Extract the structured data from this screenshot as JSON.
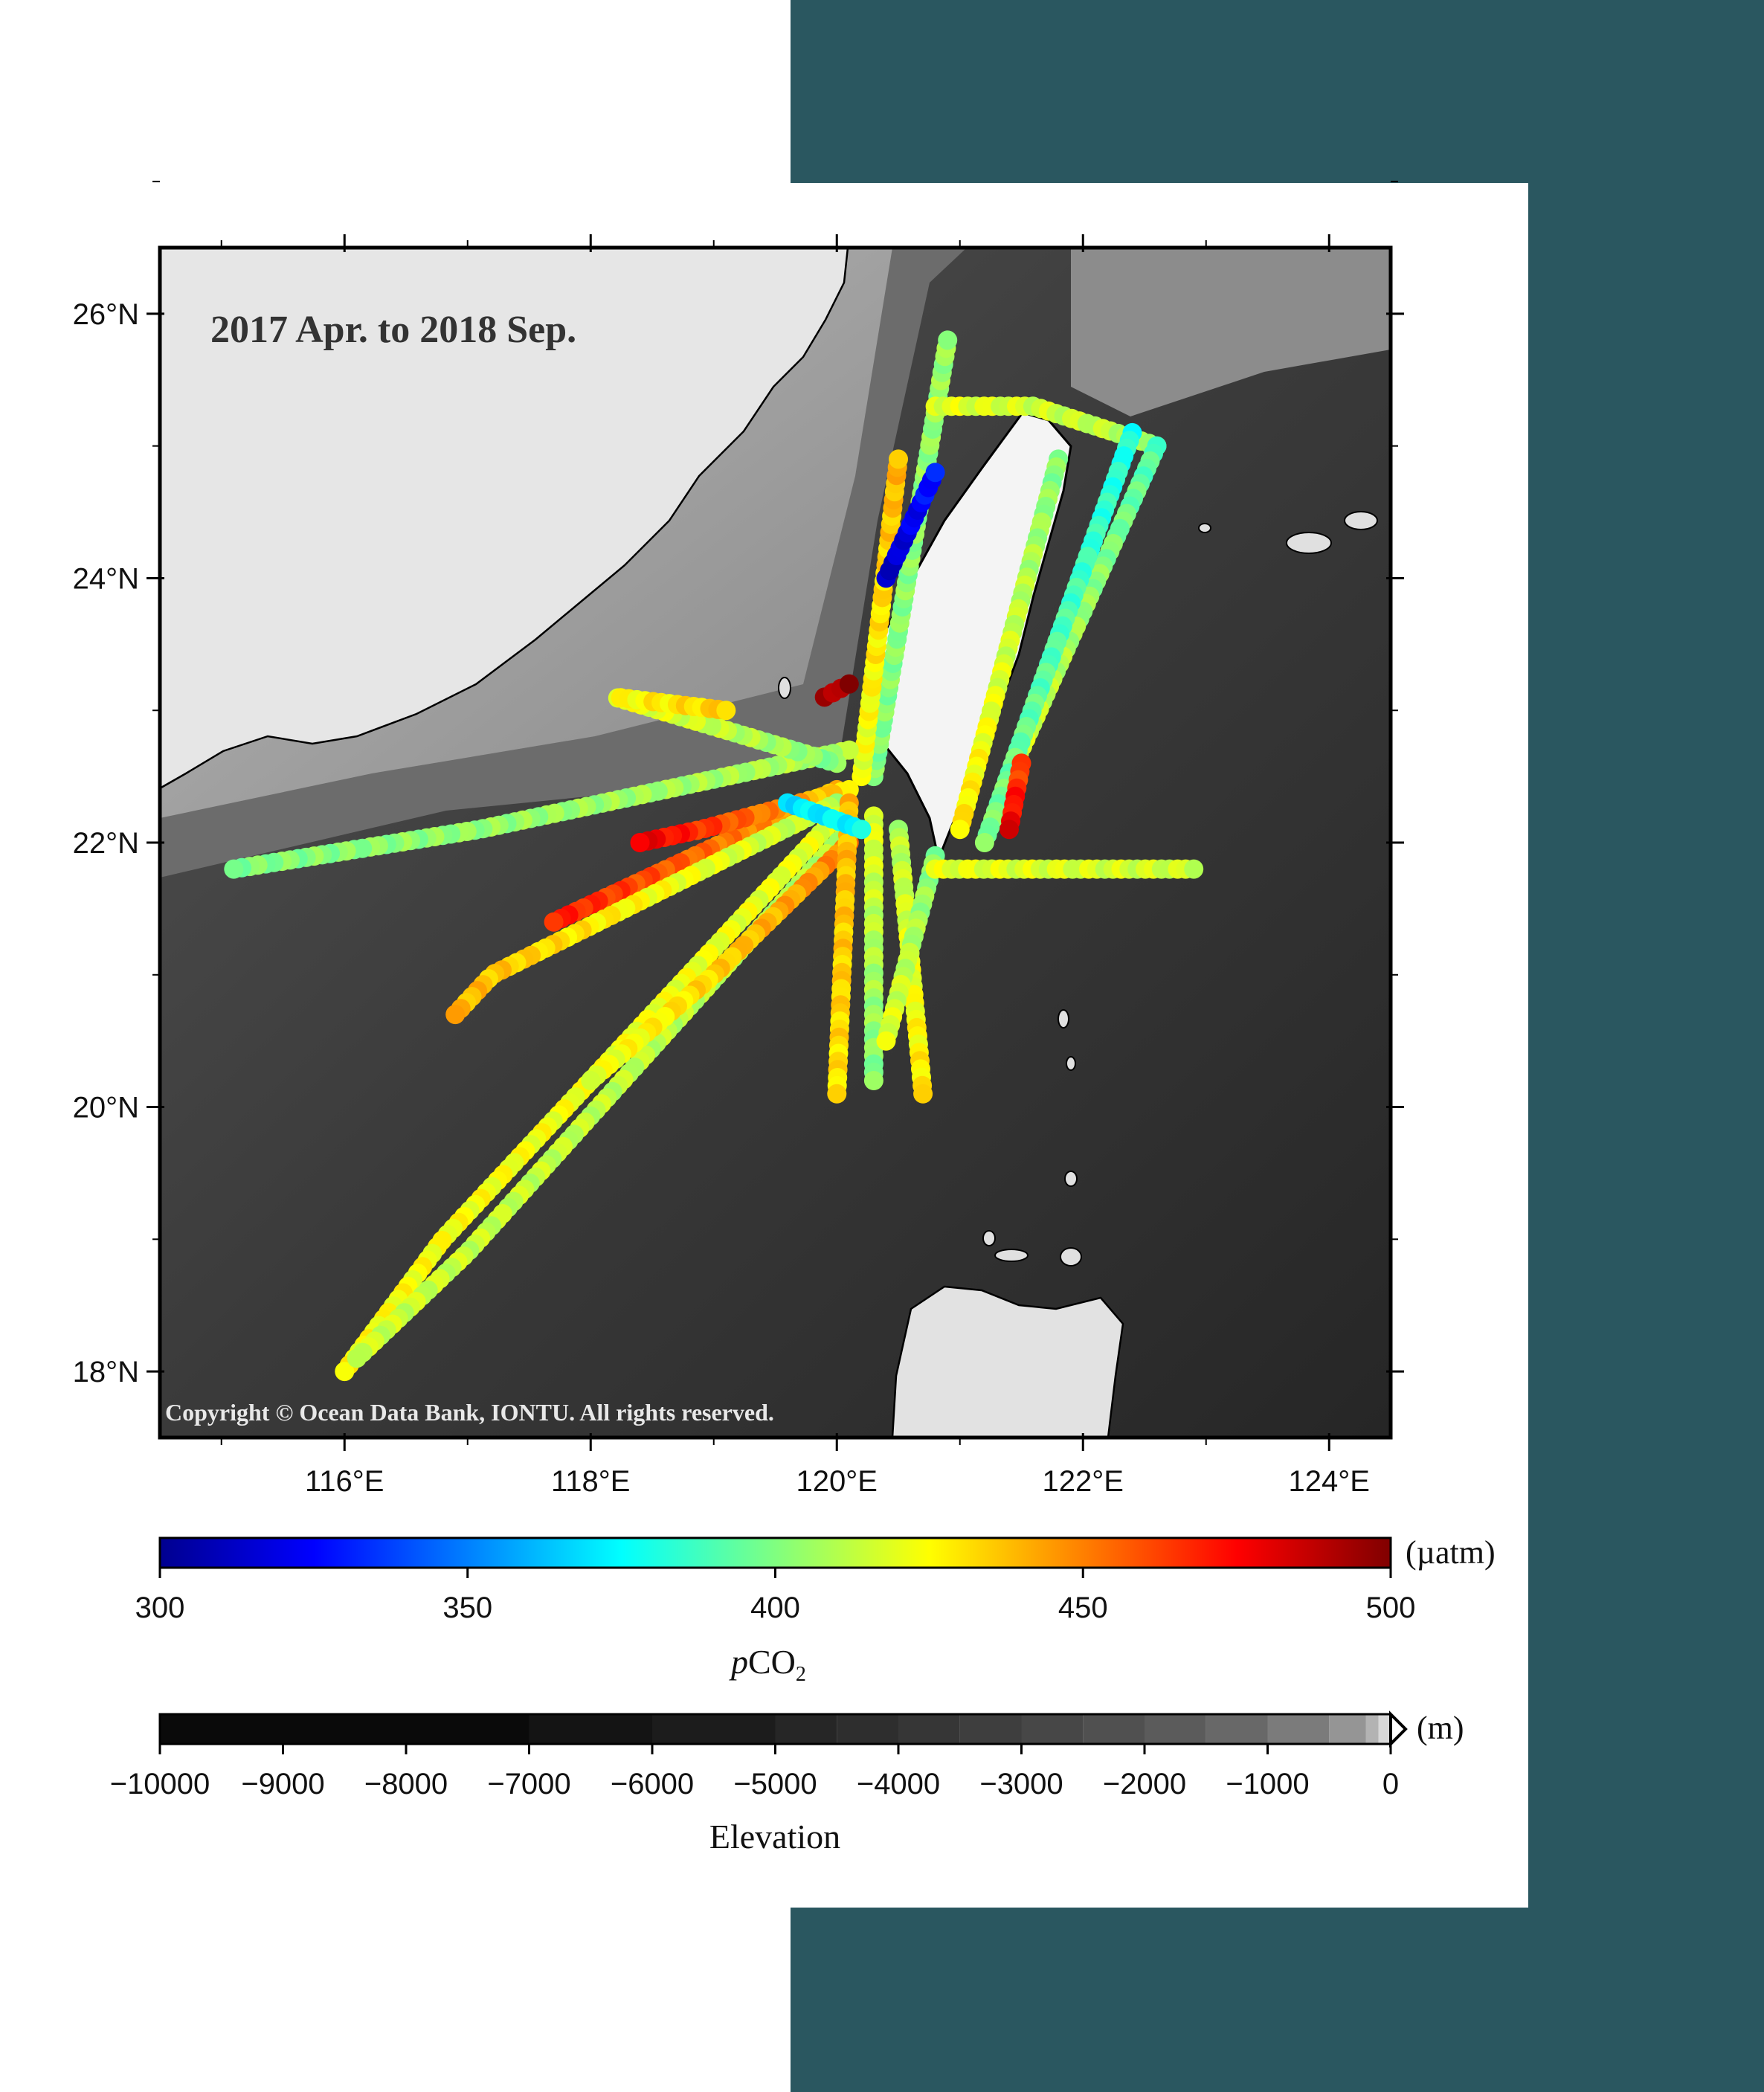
{
  "map": {
    "title": "2017 Apr. to 2018 Sep.",
    "copyright": "Copyright © Ocean Data Bank, IONTU. All rights reserved.",
    "lon_range": [
      114.5,
      124.5
    ],
    "lat_range": [
      17.5,
      26.5
    ],
    "lon_ticks": [
      {
        "value": 116,
        "label": "116°E"
      },
      {
        "value": 118,
        "label": "118°E"
      },
      {
        "value": 120,
        "label": "120°E"
      },
      {
        "value": 122,
        "label": "122°E"
      },
      {
        "value": 124,
        "label": "124°E"
      }
    ],
    "lat_ticks": [
      {
        "value": 18,
        "label": "18°N"
      },
      {
        "value": 20,
        "label": "20°N"
      },
      {
        "value": 22,
        "label": "22°N"
      },
      {
        "value": 24,
        "label": "24°N"
      },
      {
        "value": 26,
        "label": "26°N"
      }
    ],
    "tracks": [
      {
        "points": [
          [
            120.3,
            22.5
          ],
          [
            120.9,
            25.8
          ]
        ],
        "pco2": [
          400,
          405
        ]
      },
      {
        "points": [
          [
            120.2,
            22.5
          ],
          [
            120.5,
            24.9
          ]
        ],
        "pco2": [
          420,
          440
        ]
      },
      {
        "points": [
          [
            120.4,
            24.0
          ],
          [
            120.8,
            24.8
          ]
        ],
        "pco2": [
          310,
          330
        ]
      },
      {
        "points": [
          [
            120.8,
            25.3
          ],
          [
            121.6,
            25.3
          ],
          [
            122.6,
            25.0
          ]
        ],
        "pco2": [
          420,
          410
        ]
      },
      {
        "points": [
          [
            122.6,
            25.0
          ],
          [
            121.4,
            22.5
          ]
        ],
        "pco2": [
          390,
          420
        ]
      },
      {
        "points": [
          [
            122.4,
            25.1
          ],
          [
            121.2,
            22.0
          ]
        ],
        "pco2": [
          380,
          400
        ]
      },
      {
        "points": [
          [
            121.8,
            24.9
          ],
          [
            121.0,
            22.1
          ]
        ],
        "pco2": [
          400,
          430
        ]
      },
      {
        "points": [
          [
            120.1,
            22.7
          ],
          [
            117.1,
            22.1
          ],
          [
            115.1,
            21.8
          ]
        ],
        "pco2": [
          410,
          400
        ]
      },
      {
        "points": [
          [
            120.0,
            22.6
          ],
          [
            118.2,
            23.1
          ],
          [
            119.1,
            23.0
          ]
        ],
        "pco2": [
          400,
          435
        ]
      },
      {
        "points": [
          [
            120.0,
            22.4
          ],
          [
            117.7,
            21.4
          ]
        ],
        "pco2": [
          440,
          470
        ]
      },
      {
        "points": [
          [
            120.1,
            22.4
          ],
          [
            118.9,
            22.1
          ],
          [
            118.4,
            22.0
          ]
        ],
        "pco2": [
          430,
          480
        ]
      },
      {
        "points": [
          [
            120.0,
            22.3
          ],
          [
            117.2,
            21.0
          ],
          [
            116.9,
            20.7
          ]
        ],
        "pco2": [
          410,
          440
        ]
      },
      {
        "points": [
          [
            120.0,
            22.2
          ],
          [
            116.8,
            19.0
          ],
          [
            116.0,
            18.0
          ]
        ],
        "pco2": [
          420,
          425
        ]
      },
      {
        "points": [
          [
            120.1,
            22.1
          ],
          [
            117.0,
            18.9
          ],
          [
            116.1,
            18.1
          ]
        ],
        "pco2": [
          410,
          415
        ]
      },
      {
        "points": [
          [
            120.1,
            22.0
          ],
          [
            119.0,
            21.0
          ],
          [
            118.0,
            20.2
          ]
        ],
        "pco2": [
          450,
          420
        ]
      },
      {
        "points": [
          [
            120.1,
            22.3
          ],
          [
            120.0,
            20.1
          ]
        ],
        "pco2": [
          440,
          430
        ]
      },
      {
        "points": [
          [
            120.3,
            22.2
          ],
          [
            120.3,
            20.2
          ]
        ],
        "pco2": [
          420,
          400
        ]
      },
      {
        "points": [
          [
            120.5,
            22.1
          ],
          [
            120.7,
            20.1
          ]
        ],
        "pco2": [
          410,
          430
        ]
      },
      {
        "points": [
          [
            120.8,
            21.9
          ],
          [
            120.4,
            20.5
          ]
        ],
        "pco2": [
          400,
          420
        ]
      },
      {
        "points": [
          [
            120.8,
            21.8
          ],
          [
            122.9,
            21.8
          ]
        ],
        "pco2": [
          420,
          415
        ]
      },
      {
        "points": [
          [
            121.5,
            22.6
          ],
          [
            121.4,
            22.1
          ]
        ],
        "pco2": [
          460,
          480
        ]
      },
      {
        "points": [
          [
            119.9,
            23.1
          ],
          [
            120.1,
            23.2
          ]
        ],
        "pco2": [
          490,
          495
        ]
      },
      {
        "points": [
          [
            119.6,
            22.3
          ],
          [
            120.2,
            22.1
          ]
        ],
        "pco2": [
          370,
          375
        ]
      }
    ],
    "colors": {
      "water_deep": "#2e2e2e",
      "water_shelf": "#a8a8a8",
      "land": "#e8e8e8",
      "coastline": "#000000"
    }
  },
  "pco2_bar": {
    "unit": "(µatm)",
    "label_italic": "p",
    "label_main": "CO",
    "label_sub": "2",
    "ticks": [
      "300",
      "350",
      "400",
      "450",
      "500"
    ],
    "min": 300,
    "max": 500,
    "colors": [
      "#00008f",
      "#0000ff",
      "#0080ff",
      "#00ffff",
      "#80ff80",
      "#ffff00",
      "#ff8000",
      "#ff0000",
      "#800000"
    ]
  },
  "elev_bar": {
    "unit": "(m)",
    "label": "Elevation",
    "ticks": [
      "−10000",
      "−9000",
      "−8000",
      "−7000",
      "−6000",
      "−5000",
      "−4000",
      "−3000",
      "−2000",
      "−1000",
      "0"
    ],
    "min": -10000,
    "max": 0,
    "steps": [
      {
        "from": -10000,
        "to": -7000,
        "color": "#0a0a0a"
      },
      {
        "from": -7000,
        "to": -6000,
        "color": "#141414"
      },
      {
        "from": -6000,
        "to": -5000,
        "color": "#1c1c1c"
      },
      {
        "from": -5000,
        "to": -4500,
        "color": "#262626"
      },
      {
        "from": -4500,
        "to": -4000,
        "color": "#2e2e2e"
      },
      {
        "from": -4000,
        "to": -3500,
        "color": "#363636"
      },
      {
        "from": -3500,
        "to": -3000,
        "color": "#3e3e3e"
      },
      {
        "from": -3000,
        "to": -2500,
        "color": "#474747"
      },
      {
        "from": -2500,
        "to": -2000,
        "color": "#505050"
      },
      {
        "from": -2000,
        "to": -1500,
        "color": "#5b5b5b"
      },
      {
        "from": -1500,
        "to": -1000,
        "color": "#686868"
      },
      {
        "from": -1000,
        "to": -500,
        "color": "#7b7b7b"
      },
      {
        "from": -500,
        "to": -200,
        "color": "#959595"
      },
      {
        "from": -200,
        "to": -100,
        "color": "#b3b3b3"
      },
      {
        "from": -100,
        "to": 0,
        "color": "#d8d8d8"
      }
    ]
  }
}
